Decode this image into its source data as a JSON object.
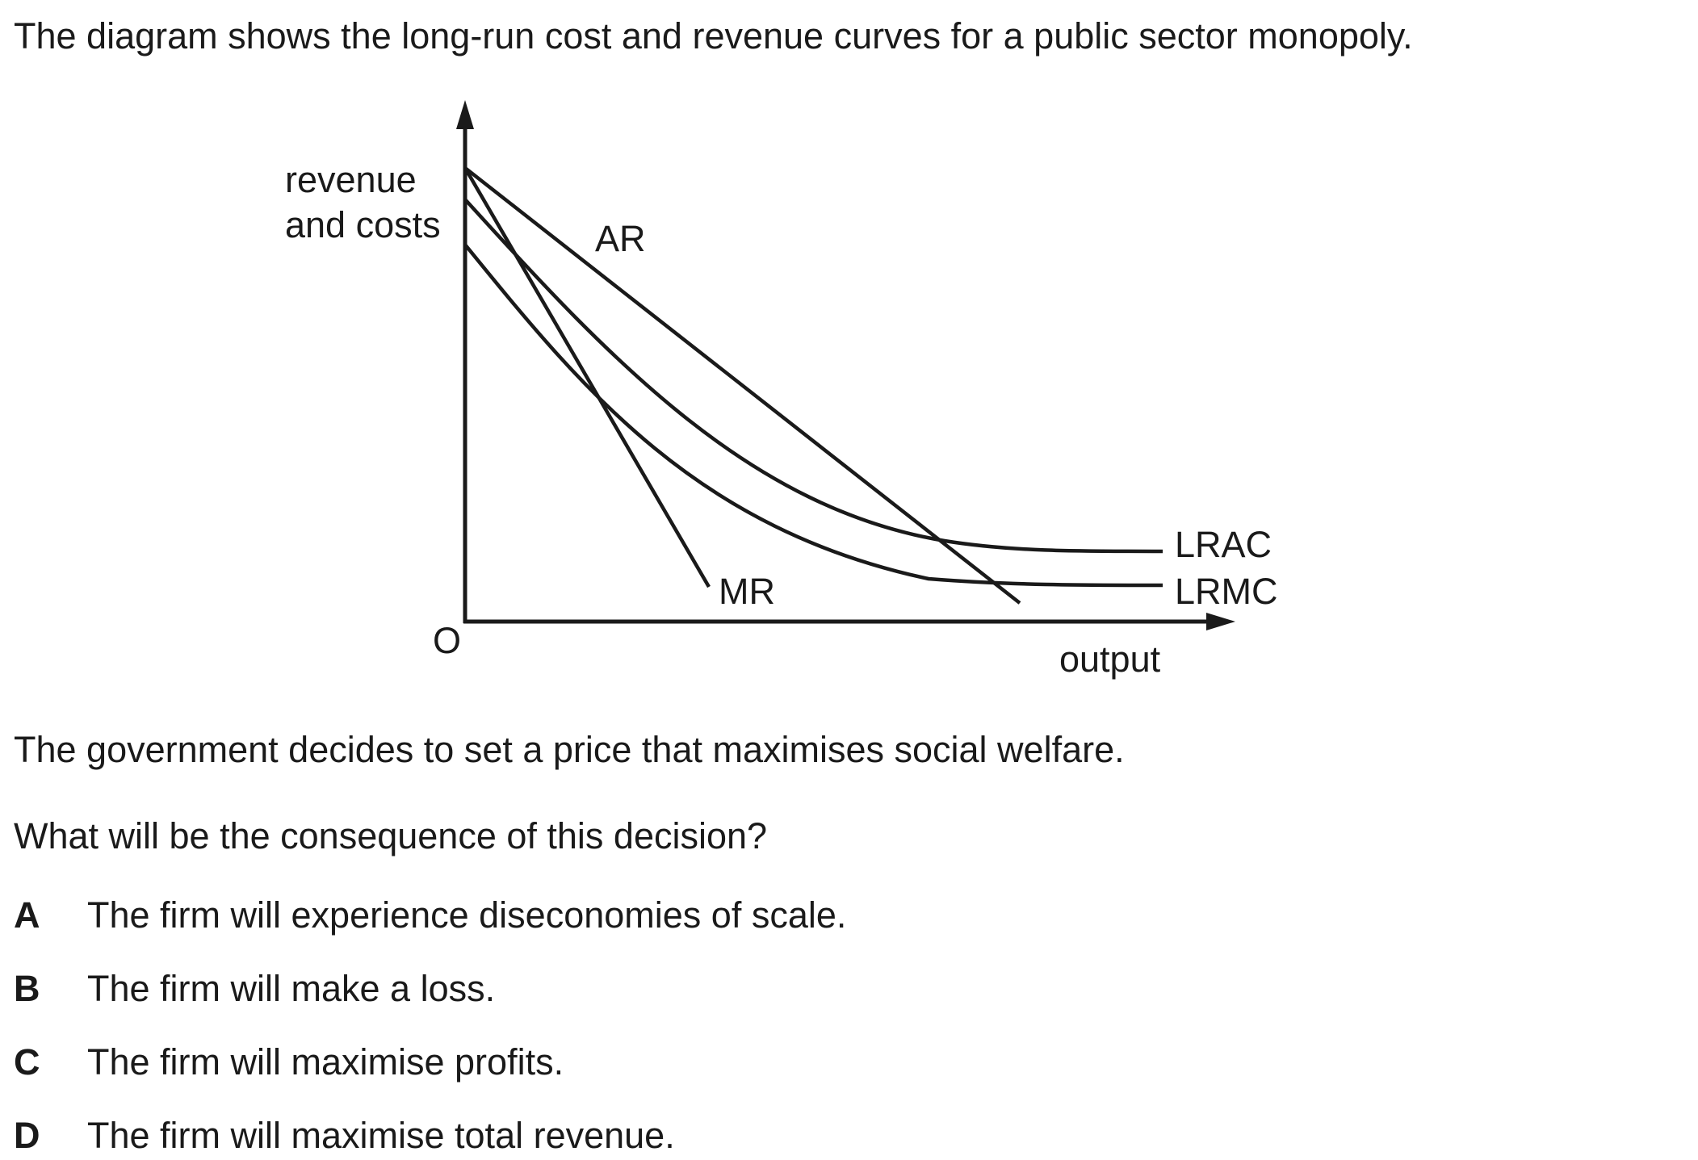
{
  "intro": "The diagram shows the long-run cost and revenue curves for a public sector monopoly.",
  "diagram": {
    "y_axis_label_line1": "revenue",
    "y_axis_label_line2": "and costs",
    "x_axis_label": "output",
    "origin_label": "O",
    "curves": {
      "ar": "AR",
      "mr": "MR",
      "lrac": "LRAC",
      "lrmc": "LRMC"
    }
  },
  "statement": "The government decides to set a price that maximises social welfare.",
  "question": "What will be the consequence of this decision?",
  "options": [
    {
      "letter": "A",
      "text": "The firm will experience diseconomies of scale."
    },
    {
      "letter": "B",
      "text": "The firm will make a loss."
    },
    {
      "letter": "C",
      "text": "The firm will maximise profits."
    },
    {
      "letter": "D",
      "text": "The firm will maximise total revenue."
    }
  ]
}
